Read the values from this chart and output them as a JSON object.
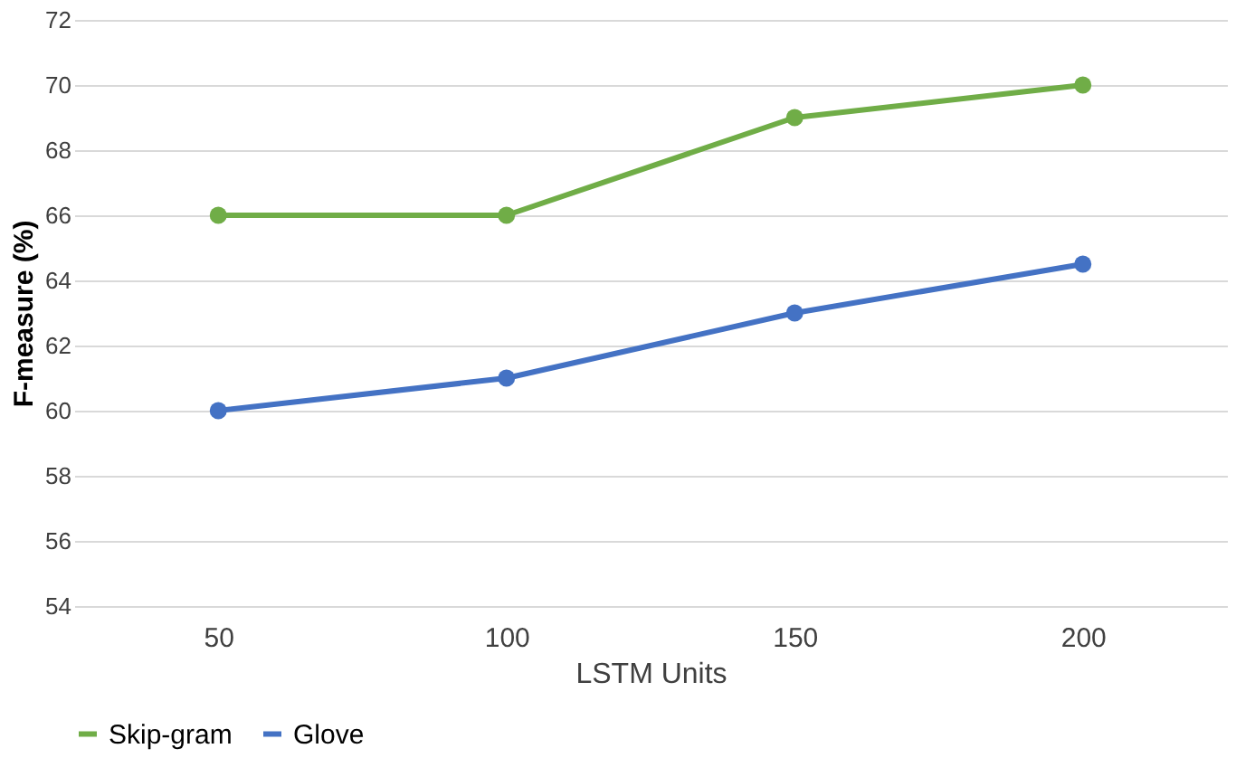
{
  "chart_data": {
    "type": "line",
    "xlabel": "LSTM Units",
    "ylabel": "F-measure (%)",
    "categories": [
      "50",
      "100",
      "150",
      "200"
    ],
    "series": [
      {
        "name": "Skip-gram",
        "color": "#70ad47",
        "values": [
          66,
          66,
          69,
          70
        ]
      },
      {
        "name": "Glove",
        "color": "#4472c4",
        "values": [
          60,
          61,
          63,
          64.5
        ]
      }
    ],
    "ylim": [
      54,
      72
    ],
    "yticks": [
      54,
      56,
      58,
      60,
      62,
      64,
      66,
      68,
      70,
      72
    ],
    "grid": "y",
    "legend": "bottom",
    "marker": "circle",
    "line_style": "solid"
  }
}
